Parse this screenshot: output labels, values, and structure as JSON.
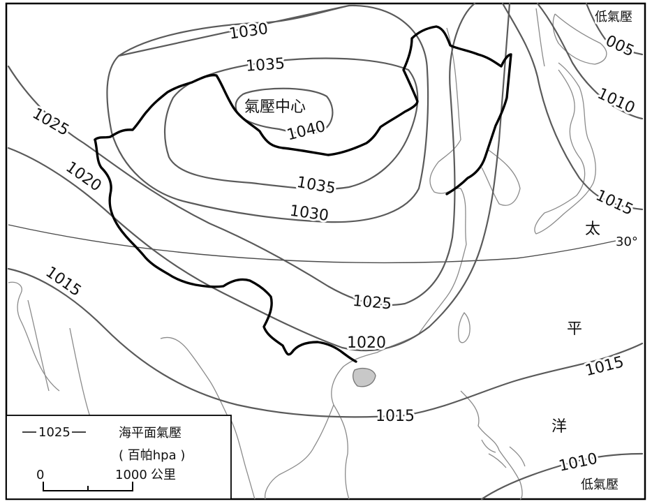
{
  "isobar_labels": {
    "i1030_top": "1030",
    "i1035_top": "1035",
    "i1040": "1040",
    "i1035_bottom": "1035",
    "i1030_mid": "1030",
    "i1025_left": "1025",
    "i1025_mid": "1025",
    "i1020_left": "1020",
    "i1020_mid": "1020",
    "i1015_left": "1015",
    "i1015_bottom": "1015",
    "i1015_right": "1015",
    "i1015_east": "1015",
    "i1010_right": "1010",
    "i1010_bottom": "1010",
    "i1005": "005"
  },
  "annotations": {
    "high_center": "氣壓中心",
    "low_top": "低氣壓",
    "low_bottom": "低氣壓",
    "latitude": "30°"
  },
  "ocean_labels": {
    "tai": "太",
    "ping": "平",
    "yang": "洋"
  },
  "legend": {
    "sample_value": "1025",
    "title": "海平面氣壓",
    "unit": "( 百帕hpa )",
    "scale_start": "0",
    "scale_end": "1000",
    "scale_unit": "公里"
  },
  "colors": {
    "isobar": "#5a5a5a",
    "border": "#000000",
    "coast": "#8a8a8a",
    "island_fill": "#c8c8c8"
  }
}
